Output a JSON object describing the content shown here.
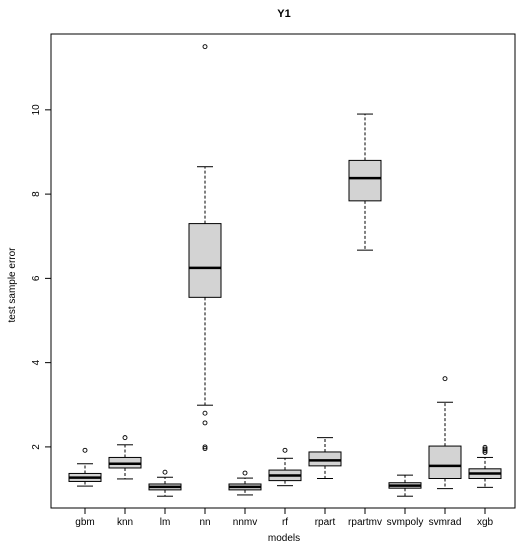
{
  "chart_data": {
    "type": "box",
    "title": "Y1",
    "xlabel": "models",
    "ylabel": "test sample error",
    "ylim": [
      0.55,
      11.8
    ],
    "yticks": [
      2,
      4,
      6,
      8,
      10
    ],
    "grid": false,
    "legend": "none",
    "box_fill": "#d3d3d3",
    "categories": [
      "gbm",
      "knn",
      "lm",
      "nn",
      "nnmv",
      "rf",
      "rpart",
      "rpartmv",
      "svmpoly",
      "svmrad",
      "xgb"
    ],
    "boxes": [
      {
        "name": "gbm",
        "lower_whisker": 1.07,
        "q1": 1.18,
        "median": 1.27,
        "q3": 1.37,
        "upper_whisker": 1.6,
        "outliers": [
          1.92
        ]
      },
      {
        "name": "knn",
        "lower_whisker": 1.24,
        "q1": 1.5,
        "median": 1.6,
        "q3": 1.75,
        "upper_whisker": 2.05,
        "outliers": [
          2.22
        ]
      },
      {
        "name": "lm",
        "lower_whisker": 0.83,
        "q1": 0.98,
        "median": 1.05,
        "q3": 1.12,
        "upper_whisker": 1.28,
        "outliers": [
          1.4
        ]
      },
      {
        "name": "nn",
        "lower_whisker": 2.99,
        "q1": 5.55,
        "median": 6.25,
        "q3": 7.3,
        "upper_whisker": 8.65,
        "outliers": [
          11.5,
          2.8,
          2.57,
          2.0,
          1.96
        ]
      },
      {
        "name": "nnmv",
        "lower_whisker": 0.86,
        "q1": 0.98,
        "median": 1.05,
        "q3": 1.12,
        "upper_whisker": 1.26,
        "outliers": [
          1.38
        ]
      },
      {
        "name": "rf",
        "lower_whisker": 1.08,
        "q1": 1.2,
        "median": 1.32,
        "q3": 1.45,
        "upper_whisker": 1.73,
        "outliers": [
          1.92
        ]
      },
      {
        "name": "rpart",
        "lower_whisker": 1.25,
        "q1": 1.55,
        "median": 1.68,
        "q3": 1.88,
        "upper_whisker": 2.22,
        "outliers": []
      },
      {
        "name": "rpartmv",
        "lower_whisker": 6.67,
        "q1": 7.84,
        "median": 8.38,
        "q3": 8.8,
        "upper_whisker": 9.9,
        "outliers": []
      },
      {
        "name": "svmpoly",
        "lower_whisker": 0.83,
        "q1": 1.02,
        "median": 1.08,
        "q3": 1.15,
        "upper_whisker": 1.33,
        "outliers": []
      },
      {
        "name": "svmrad",
        "lower_whisker": 1.01,
        "q1": 1.25,
        "median": 1.55,
        "q3": 2.02,
        "upper_whisker": 3.06,
        "outliers": [
          3.62
        ]
      },
      {
        "name": "xgb",
        "lower_whisker": 1.04,
        "q1": 1.25,
        "median": 1.37,
        "q3": 1.48,
        "upper_whisker": 1.75,
        "outliers": [
          1.87,
          1.91,
          1.95,
          1.99
        ]
      }
    ]
  }
}
